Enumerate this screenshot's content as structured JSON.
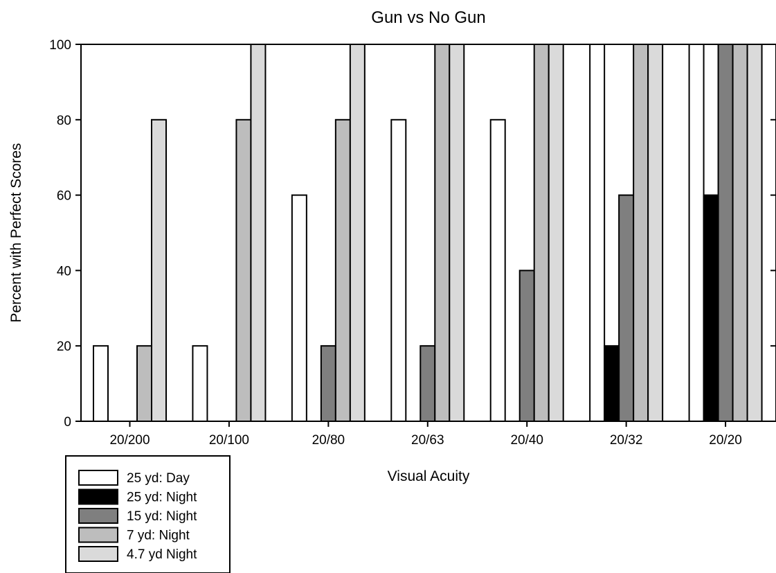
{
  "chart_data": {
    "type": "bar",
    "title": "Gun vs No Gun",
    "xlabel": "Visual Acuity",
    "ylabel": "Percent with Perfect Scores",
    "ylim": [
      0,
      100
    ],
    "yticks": [
      0,
      20,
      40,
      60,
      80,
      100
    ],
    "grid": false,
    "legend_position": "bottom-left",
    "categories": [
      "20/200",
      "20/100",
      "20/80",
      "20/63",
      "20/40",
      "20/32",
      "20/20"
    ],
    "series": [
      {
        "name": "25 yd: Day",
        "color": "#ffffff",
        "values": [
          20,
          20,
          60,
          80,
          80,
          100,
          100
        ]
      },
      {
        "name": "25 yd: Night",
        "color": "#000000",
        "values": [
          0,
          0,
          0,
          0,
          0,
          20,
          60
        ]
      },
      {
        "name": "15 yd: Night",
        "color": "#7f7f7f",
        "values": [
          0,
          0,
          20,
          20,
          40,
          60,
          100
        ]
      },
      {
        "name": "7 yd: Night",
        "color": "#bdbdbd",
        "values": [
          20,
          80,
          80,
          100,
          100,
          100,
          100
        ]
      },
      {
        "name": "4.7 yd Night",
        "color": "#dadada",
        "values": [
          80,
          100,
          100,
          100,
          100,
          100,
          100
        ]
      }
    ]
  }
}
